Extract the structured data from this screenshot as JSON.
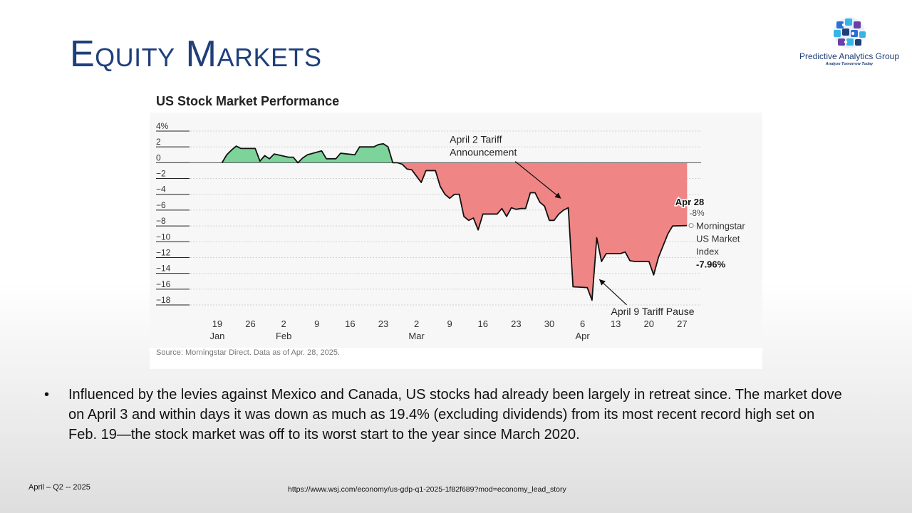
{
  "slide": {
    "title": "Equity Markets",
    "bullet_marker": "•",
    "bullet": "Influenced by the levies against Mexico and Canada, US stocks had already been largely in retreat since. The market dove on April 3 and within days it was down as much as 19.4% (excluding dividends) from its most recent record high set on Feb. 19—the stock market was off to its worst start to the year since March 2020.",
    "footer_date": "April – Q2 -- 2025",
    "footer_url": "https://www.wsj.com/economy/us-gdp-q1-2025-1f82f689?mod=economy_lead_story"
  },
  "logo": {
    "name": "Predictive Analytics Group",
    "tagline": "Analyze Tomorrow Today",
    "colors": [
      "#1f3f7a",
      "#2b6fd6",
      "#35b5e5",
      "#6a3fa8"
    ]
  },
  "chart_data": {
    "type": "area",
    "title": "US Stock Market Performance",
    "source": "Source: Morningstar Direct. Data as of Apr. 28, 2025.",
    "ylim": [
      -18,
      4
    ],
    "y_ticks": [
      {
        "value": 4,
        "label": "4%"
      },
      {
        "value": 2,
        "label": "2"
      },
      {
        "value": 0,
        "label": "0"
      },
      {
        "value": -2,
        "label": "−2"
      },
      {
        "value": -4,
        "label": "−4"
      },
      {
        "value": -6,
        "label": "−6"
      },
      {
        "value": -8,
        "label": "−8"
      },
      {
        "value": -10,
        "label": "−10"
      },
      {
        "value": -12,
        "label": "−12"
      },
      {
        "value": -14,
        "label": "−14"
      },
      {
        "value": -16,
        "label": "−16"
      },
      {
        "value": -18,
        "label": "−18"
      }
    ],
    "x_range": [
      "2025-01-13",
      "2025-05-01"
    ],
    "x_ticks": [
      {
        "date": "2025-01-19",
        "day": "19",
        "month": "Jan"
      },
      {
        "date": "2025-01-26",
        "day": "26",
        "month": ""
      },
      {
        "date": "2025-02-02",
        "day": "2",
        "month": "Feb"
      },
      {
        "date": "2025-02-09",
        "day": "9",
        "month": ""
      },
      {
        "date": "2025-02-16",
        "day": "16",
        "month": ""
      },
      {
        "date": "2025-02-23",
        "day": "23",
        "month": ""
      },
      {
        "date": "2025-03-02",
        "day": "2",
        "month": "Mar"
      },
      {
        "date": "2025-03-09",
        "day": "9",
        "month": ""
      },
      {
        "date": "2025-03-16",
        "day": "16",
        "month": ""
      },
      {
        "date": "2025-03-23",
        "day": "23",
        "month": ""
      },
      {
        "date": "2025-03-30",
        "day": "30",
        "month": ""
      },
      {
        "date": "2025-04-06",
        "day": "6",
        "month": "Apr"
      },
      {
        "date": "2025-04-13",
        "day": "13",
        "month": ""
      },
      {
        "date": "2025-04-20",
        "day": "20",
        "month": ""
      },
      {
        "date": "2025-04-27",
        "day": "27",
        "month": ""
      }
    ],
    "grid": true,
    "positive_color": "#7dd49a",
    "negative_color": "#ef8585",
    "line_color": "#111111",
    "series": [
      {
        "name": "Morningstar US Market Index",
        "points": [
          [
            "2025-01-20",
            0.0
          ],
          [
            "2025-01-21",
            1.0
          ],
          [
            "2025-01-22",
            1.6
          ],
          [
            "2025-01-23",
            2.1
          ],
          [
            "2025-01-24",
            1.8
          ],
          [
            "2025-01-27",
            1.8
          ],
          [
            "2025-01-28",
            0.2
          ],
          [
            "2025-01-29",
            0.9
          ],
          [
            "2025-01-30",
            0.5
          ],
          [
            "2025-01-31",
            1.1
          ],
          [
            "2025-02-03",
            0.7
          ],
          [
            "2025-02-04",
            0.7
          ],
          [
            "2025-02-05",
            0.0
          ],
          [
            "2025-02-06",
            0.6
          ],
          [
            "2025-02-07",
            1.0
          ],
          [
            "2025-02-10",
            1.5
          ],
          [
            "2025-02-11",
            0.5
          ],
          [
            "2025-02-12",
            0.5
          ],
          [
            "2025-02-13",
            0.5
          ],
          [
            "2025-02-14",
            1.2
          ],
          [
            "2025-02-17",
            1.0
          ],
          [
            "2025-02-18",
            2.0
          ],
          [
            "2025-02-19",
            2.0
          ],
          [
            "2025-02-20",
            2.0
          ],
          [
            "2025-02-21",
            2.0
          ],
          [
            "2025-02-22",
            2.3
          ],
          [
            "2025-02-23",
            2.4
          ],
          [
            "2025-02-24",
            2.0
          ],
          [
            "2025-02-25",
            0.0
          ],
          [
            "2025-02-26",
            0.0
          ],
          [
            "2025-02-27",
            -0.2
          ],
          [
            "2025-02-28",
            -0.8
          ],
          [
            "2025-03-01",
            -0.9
          ],
          [
            "2025-03-03",
            -2.5
          ],
          [
            "2025-03-04",
            -1.0
          ],
          [
            "2025-03-05",
            -1.0
          ],
          [
            "2025-03-06",
            -1.0
          ],
          [
            "2025-03-07",
            -3.0
          ],
          [
            "2025-03-08",
            -4.0
          ],
          [
            "2025-03-09",
            -4.5
          ],
          [
            "2025-03-10",
            -4.0
          ],
          [
            "2025-03-11",
            -4.0
          ],
          [
            "2025-03-12",
            -6.8
          ],
          [
            "2025-03-13",
            -7.3
          ],
          [
            "2025-03-14",
            -7.0
          ],
          [
            "2025-03-15",
            -8.5
          ],
          [
            "2025-03-16",
            -6.5
          ],
          [
            "2025-03-18",
            -6.5
          ],
          [
            "2025-03-19",
            -6.5
          ],
          [
            "2025-03-20",
            -5.8
          ],
          [
            "2025-03-21",
            -6.8
          ],
          [
            "2025-03-22",
            -5.7
          ],
          [
            "2025-03-23",
            -5.9
          ],
          [
            "2025-03-24",
            -5.8
          ],
          [
            "2025-03-25",
            -5.8
          ],
          [
            "2025-03-26",
            -3.8
          ],
          [
            "2025-03-27",
            -3.8
          ],
          [
            "2025-03-28",
            -5.0
          ],
          [
            "2025-03-29",
            -5.5
          ],
          [
            "2025-03-30",
            -7.3
          ],
          [
            "2025-03-31",
            -7.3
          ],
          [
            "2025-04-01",
            -6.5
          ],
          [
            "2025-04-02",
            -6.0
          ],
          [
            "2025-04-03",
            -5.7
          ],
          [
            "2025-04-04",
            -15.7
          ],
          [
            "2025-04-07",
            -15.8
          ],
          [
            "2025-04-08",
            -17.4
          ],
          [
            "2025-04-09",
            -9.5
          ],
          [
            "2025-04-10",
            -12.5
          ],
          [
            "2025-04-11",
            -11.5
          ],
          [
            "2025-04-14",
            -11.5
          ],
          [
            "2025-04-15",
            -11.3
          ],
          [
            "2025-04-16",
            -12.4
          ],
          [
            "2025-04-17",
            -12.5
          ],
          [
            "2025-04-20",
            -12.5
          ],
          [
            "2025-04-21",
            -14.2
          ],
          [
            "2025-04-22",
            -12.0
          ],
          [
            "2025-04-23",
            -10.5
          ],
          [
            "2025-04-24",
            -9.0
          ],
          [
            "2025-04-25",
            -8.0
          ],
          [
            "2025-04-28",
            -7.96
          ]
        ]
      }
    ],
    "end_label": {
      "lines": [
        "Morningstar",
        "US Market",
        "Index"
      ],
      "value": "-7.96%"
    },
    "annotations": [
      {
        "id": "tariff-announcement",
        "lines": [
          "April 2 Tariff",
          "Announcement"
        ],
        "date": "2025-04-02",
        "value": -4.5,
        "label_date": "2025-03-09",
        "label_value": 2.5
      },
      {
        "id": "tariff-pause",
        "lines": [
          "April 9 Tariff Pause"
        ],
        "date": "2025-04-09",
        "value": -14.8,
        "label_date": "2025-04-12",
        "label_value": -18.8
      }
    ],
    "callout": {
      "date_label": "Apr 28",
      "value_label": "-8%",
      "date": "2025-04-28",
      "value": -8
    }
  }
}
